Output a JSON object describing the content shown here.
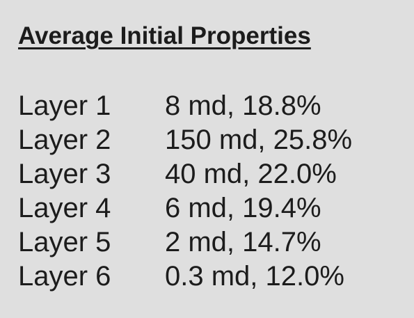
{
  "title": "Average Initial Properties",
  "layers": [
    {
      "label": "Layer 1",
      "value": "8 md, 18.8%"
    },
    {
      "label": "Layer 2",
      "value": "150 md, 25.8%"
    },
    {
      "label": "Layer 3",
      "value": "40 md, 22.0%"
    },
    {
      "label": "Layer 4",
      "value": "6 md, 19.4%"
    },
    {
      "label": "Layer 5",
      "value": "2 md, 14.7%"
    },
    {
      "label": "Layer 6",
      "value": "0.3 md, 12.0%"
    }
  ]
}
